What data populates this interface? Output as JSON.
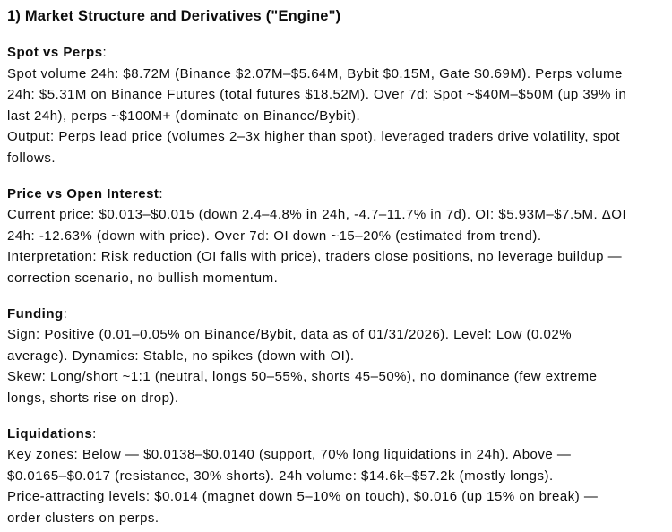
{
  "page": {
    "background": "#ffffff",
    "text_color": "#0d0d0d"
  },
  "punct": {
    "colon": ":"
  },
  "title": "1) Market Structure and Derivatives (\"Engine\")",
  "sections": [
    {
      "label": "Spot vs Perps",
      "parts": [
        "Spot volume 24h: $8.72M (Binance $2.07M–$5.64M, Bybit $0.15M, Gate $0.69M). Perps volume 24h: $5.31M on Binance Futures (total futures $18.52M). Over 7d: Spot ~$40M–$50M (up 39% in last 24h), perps ~$100M+ (dominate on Binance/Bybit).",
        "Output: Perps lead price (volumes 2–3x higher than spot), leveraged traders drive volatility, spot follows."
      ]
    },
    {
      "label": "Price vs Open Interest",
      "parts": [
        "Current price: $0.013–$0.015 (down 2.4–4.8% in 24h, -4.7–11.7% in 7d). OI: $5.93M–$7.5M. ΔOI 24h: -12.63% (down with price). Over 7d: OI down ~15–20% (estimated from trend).",
        "Interpretation: Risk reduction (OI falls with price), traders close positions, no leverage buildup — correction scenario, no bullish momentum."
      ]
    },
    {
      "label": "Funding",
      "parts": [
        "Sign: Positive (0.01–0.05% on Binance/Bybit, data as of 01/31/2026). Level: Low (0.02% average). Dynamics: Stable, no spikes (down with OI).",
        "Skew: Long/short ~1:1 (neutral, longs 50–55%, shorts 45–50%), no dominance (few extreme longs, shorts rise on drop)."
      ]
    },
    {
      "label": "Liquidations",
      "parts": [
        "Key zones: Below — $0.0138–$0.0140 (support, 70% long liquidations in 24h). Above — $0.0165–$0.017 (resistance, 30% shorts). 24h volume: $14.6k–$57.2k (mostly longs).",
        "Price-attracting levels: $0.014 (magnet down 5–10% on touch), $0.016 (up 15% on break) — order clusters on perps."
      ]
    }
  ]
}
